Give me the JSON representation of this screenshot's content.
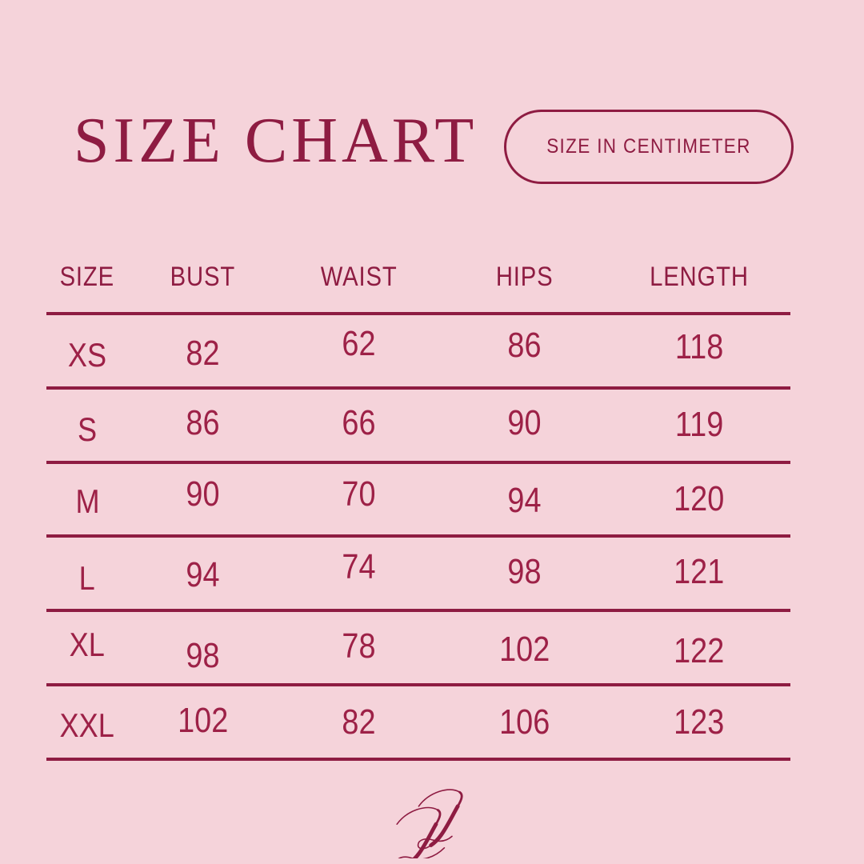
{
  "header": {
    "title": "SIZE CHART",
    "unit_badge": "SIZE IN CENTIMETER"
  },
  "chart_data": {
    "type": "table",
    "title": "SIZE CHART",
    "unit": "centimeter",
    "columns": [
      "SIZE",
      "BUST",
      "WAIST",
      "HIPS",
      "LENGTH"
    ],
    "rows": [
      [
        "XS",
        "82",
        "62",
        "86",
        "118"
      ],
      [
        "S",
        "86",
        "66",
        "90",
        "119"
      ],
      [
        "M",
        "90",
        "70",
        "94",
        "120"
      ],
      [
        "L",
        "94",
        "74",
        "98",
        "121"
      ],
      [
        "XL",
        "98",
        "78",
        "102",
        "122"
      ],
      [
        "XXL",
        "102",
        "82",
        "106",
        "123"
      ]
    ]
  },
  "footer": {
    "monogram": "JJ"
  },
  "colors": {
    "background": "#f5d3da",
    "accent": "#8e1c42",
    "table_text": "#9d2147"
  }
}
